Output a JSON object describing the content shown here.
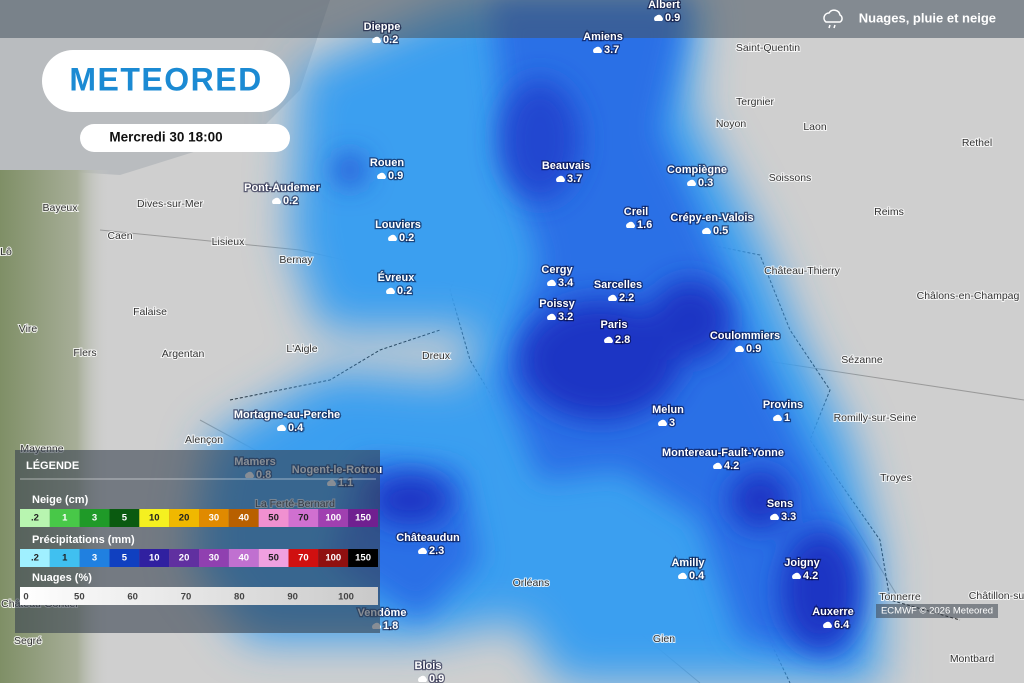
{
  "header": {
    "title": "Nuages, pluie et neige"
  },
  "logo": "METEORED",
  "date": "Mercredi 30 18:00",
  "cities": [
    {
      "name": "Albert",
      "value": 0.9
    },
    {
      "name": "Dieppe",
      "value": 0.2
    },
    {
      "name": "Amiens",
      "value": 3.7
    },
    {
      "name": "Rouen",
      "value": 0.9
    },
    {
      "name": "Pont-Audemer",
      "value": 0.2
    },
    {
      "name": "Beauvais",
      "value": 3.7
    },
    {
      "name": "Compiègne",
      "value": 0.3
    },
    {
      "name": "Creil",
      "value": 1.6
    },
    {
      "name": "Crépy-en-Valois",
      "value": 0.5
    },
    {
      "name": "Louviers",
      "value": 0.2
    },
    {
      "name": "Évreux",
      "value": 0.2
    },
    {
      "name": "Cergy",
      "value": 3.4
    },
    {
      "name": "Sarcelles",
      "value": 2.2
    },
    {
      "name": "Poissy",
      "value": 3.2
    },
    {
      "name": "Paris",
      "value": 2.8
    },
    {
      "name": "Coulommiers",
      "value": 0.9
    },
    {
      "name": "Mortagne-au-Perche",
      "value": 0.4
    },
    {
      "name": "Melun",
      "value": 3
    },
    {
      "name": "Provins",
      "value": 1
    },
    {
      "name": "Mamers",
      "value": 0.8
    },
    {
      "name": "Nogent-le-Rotrou",
      "value": 1.1
    },
    {
      "name": "Montereau-Fault-Yonne",
      "value": 4.2
    },
    {
      "name": "Sens",
      "value": 3.3
    },
    {
      "name": "Châteaudun",
      "value": 2.3
    },
    {
      "name": "Amilly",
      "value": 0.4
    },
    {
      "name": "Joigny",
      "value": 4.2
    },
    {
      "name": "Auxerre",
      "value": 6.4
    },
    {
      "name": "Vendôme",
      "value": 1.8
    },
    {
      "name": "Blois",
      "value": 0.9
    }
  ],
  "places": [
    "Saint-Quentin",
    "Tergnier",
    "Noyon",
    "Laon",
    "Rethel",
    "Soissons",
    "Reims",
    "Château-Thierry",
    "Châlons-en-Champag",
    "Sézanne",
    "Romilly-sur-Seine",
    "Troyes",
    "Bayeux",
    "Dives-sur-Mer",
    "Caen",
    "Lisieux",
    "Bernay",
    "Lô",
    "Falaise",
    "Vire",
    "Flers",
    "Argentan",
    "L'Aigle",
    "Dreux",
    "Alençon",
    "Mayenne",
    "Segré",
    "Orléans",
    "Gien",
    "Tonnerre",
    "Châtillon-sur-",
    "Montbard",
    "La Ferté-Bernard",
    "Château-Gontier"
  ],
  "legend": {
    "title": "LÉGENDE",
    "snow": {
      "label": "Neige (cm)",
      "steps": [
        {
          "label": ".2",
          "color": "#b8f5b0"
        },
        {
          "label": "1",
          "color": "#48c848"
        },
        {
          "label": "3",
          "color": "#1f9a28"
        },
        {
          "label": "5",
          "color": "#0a5a10"
        },
        {
          "label": "10",
          "color": "#f5f020"
        },
        {
          "label": "20",
          "color": "#f0b800"
        },
        {
          "label": "30",
          "color": "#e08a00"
        },
        {
          "label": "40",
          "color": "#b86000"
        },
        {
          "label": "50",
          "color": "#f090d0"
        },
        {
          "label": "70",
          "color": "#d070d0"
        },
        {
          "label": "100",
          "color": "#a040b0"
        },
        {
          "label": "150",
          "color": "#702090"
        }
      ]
    },
    "rain": {
      "label": "Précipitations (mm)",
      "steps": [
        {
          "label": ".2",
          "color": "#a0f0ff"
        },
        {
          "label": "1",
          "color": "#40c0f0"
        },
        {
          "label": "3",
          "color": "#2080e0"
        },
        {
          "label": "5",
          "color": "#1040c0"
        },
        {
          "label": "10",
          "color": "#3020a0"
        },
        {
          "label": "20",
          "color": "#6030a0"
        },
        {
          "label": "30",
          "color": "#9040b0"
        },
        {
          "label": "40",
          "color": "#c070d0"
        },
        {
          "label": "50",
          "color": "#f0a0e0"
        },
        {
          "label": "70",
          "color": "#d01010"
        },
        {
          "label": "100",
          "color": "#901010"
        },
        {
          "label": "150",
          "color": "#000000"
        }
      ]
    },
    "clouds": {
      "label": "Nuages (%)",
      "ticks": [
        "0",
        "50",
        "60",
        "70",
        "80",
        "90",
        "100"
      ]
    }
  },
  "credit": "ECMWF © 2026 Meteored"
}
